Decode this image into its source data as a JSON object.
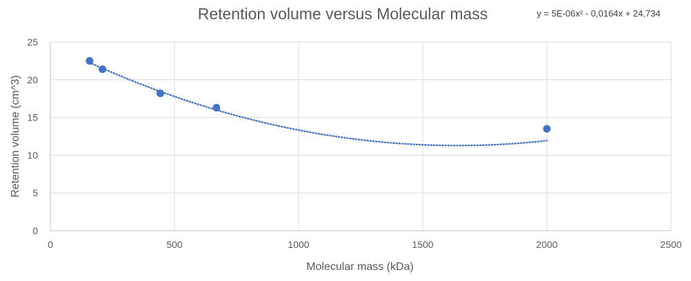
{
  "chart_data": {
    "type": "scatter",
    "title": "Retention volume versus Molecular mass",
    "xlabel": "Molecular mass (kDa)",
    "ylabel": "Retention volume (cm^3)",
    "xlim": [
      0,
      2500
    ],
    "ylim": [
      0,
      25
    ],
    "x_ticks": [
      0,
      500,
      1000,
      1500,
      2000,
      2500
    ],
    "y_ticks": [
      0,
      5,
      10,
      15,
      20,
      25
    ],
    "grid": true,
    "legend": "none",
    "series": [
      {
        "x": [
          158,
          210,
          443,
          669,
          2000
        ],
        "y": [
          22.5,
          21.4,
          18.2,
          16.3,
          13.5
        ],
        "color": "#4472C4"
      }
    ],
    "trendline": {
      "type": "polynomial",
      "order": 2,
      "coefficients": [
        5e-06,
        -0.0164,
        24.734
      ],
      "x_range": [
        158,
        2000
      ],
      "equation_label": "y = 5E-06x² - 0,0164x + 24,734",
      "color": "#4472C4"
    }
  }
}
